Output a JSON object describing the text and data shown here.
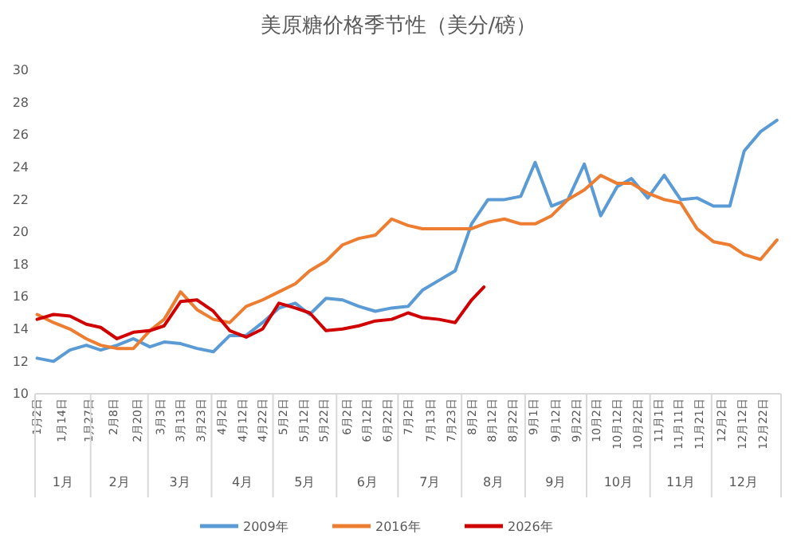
{
  "chart_data": {
    "type": "line",
    "title": "美原糖价格季节性（美分/磅）",
    "x": [
      "--01-02",
      "--01-10",
      "--01-18",
      "--01-26",
      "--02-02",
      "--02-10",
      "--02-18",
      "--02-26",
      "--03-05",
      "--03-13",
      "--03-21",
      "--03-29",
      "--04-06",
      "--04-14",
      "--04-22",
      "--04-30",
      "--05-08",
      "--05-15",
      "--05-23",
      "--05-31",
      "--06-08",
      "--06-16",
      "--06-24",
      "--07-02",
      "--07-09",
      "--07-17",
      "--07-25",
      "--08-02",
      "--08-10",
      "--08-18",
      "--08-26",
      "--09-02",
      "--09-10",
      "--09-18",
      "--09-26",
      "--10-04",
      "--10-12",
      "--10-19",
      "--10-27",
      "--11-04",
      "--11-12",
      "--11-20",
      "--11-28",
      "--12-06",
      "--12-13",
      "--12-21",
      "--12-29"
    ],
    "series": [
      {
        "name": "2009年",
        "color": "#5b9bd5",
        "values": [
          12.2,
          12.0,
          12.7,
          13.0,
          12.7,
          13.0,
          13.4,
          12.9,
          13.2,
          13.1,
          12.8,
          12.6,
          13.6,
          13.6,
          14.4,
          15.3,
          15.6,
          14.9,
          15.9,
          15.8,
          15.4,
          15.1,
          15.3,
          15.4,
          16.4,
          17.0,
          17.6,
          20.5,
          22.0,
          22.0,
          22.2,
          24.3,
          21.6,
          22.0,
          24.2,
          21.0,
          22.8,
          23.3,
          22.1,
          23.5,
          22.0,
          22.1,
          21.6,
          21.6,
          25.0,
          26.2,
          26.9
        ]
      },
      {
        "name": "2016年",
        "color": "#ed7d31",
        "values": [
          14.9,
          14.4,
          14.0,
          13.4,
          13.0,
          12.8,
          12.8,
          13.9,
          14.6,
          16.3,
          15.2,
          14.6,
          14.4,
          15.4,
          15.8,
          16.3,
          16.8,
          17.6,
          18.2,
          19.2,
          19.6,
          19.8,
          20.8,
          20.4,
          20.2,
          20.2,
          20.2,
          20.2,
          20.6,
          20.8,
          20.5,
          20.5,
          21.0,
          22.0,
          22.6,
          23.5,
          23.0,
          23.0,
          22.4,
          22.0,
          21.8,
          20.2,
          19.4,
          19.2,
          18.6,
          18.3,
          19.5
        ]
      },
      {
        "name": "2026年",
        "color": "#d00000",
        "x": [
          "--01-02",
          "--01-10",
          "--01-18",
          "--01-26",
          "--02-02",
          "--02-10",
          "--02-18",
          "--02-26",
          "--03-05",
          "--03-13",
          "--03-21",
          "--03-29",
          "--04-06",
          "--04-14",
          "--04-22",
          "--04-30",
          "--05-08",
          "--05-15",
          "--05-23",
          "--05-31",
          "--06-08",
          "--06-16",
          "--06-24",
          "--07-02",
          "--07-09",
          "--07-17",
          "--07-25",
          "--08-02",
          "--08-08"
        ],
        "values": [
          14.6,
          14.9,
          14.8,
          14.3,
          14.1,
          13.4,
          13.8,
          13.9,
          14.2,
          15.7,
          15.8,
          15.1,
          13.9,
          13.5,
          14.0,
          15.6,
          15.3,
          15.0,
          13.9,
          14.0,
          14.2,
          14.5,
          14.6,
          15.0,
          14.7,
          14.6,
          14.4,
          15.8,
          16.6
        ]
      }
    ],
    "xlim": [
      "--01-01",
      "--12-31"
    ],
    "xticks": [
      {
        "value": "--01-02",
        "label": "1月2日"
      },
      {
        "value": "--01-14",
        "label": "1月14日"
      },
      {
        "value": "--01-27",
        "label": "1月27日"
      },
      {
        "value": "--02-08",
        "label": "2月8日"
      },
      {
        "value": "--02-20",
        "label": "2月20日"
      },
      {
        "value": "--03-03",
        "label": "3月3日"
      },
      {
        "value": "--03-13",
        "label": "3月13日"
      },
      {
        "value": "--03-23",
        "label": "3月23日"
      },
      {
        "value": "--04-02",
        "label": "4月2日"
      },
      {
        "value": "--04-12",
        "label": "4月12日"
      },
      {
        "value": "--04-22",
        "label": "4月22日"
      },
      {
        "value": "--05-02",
        "label": "5月2日"
      },
      {
        "value": "--05-12",
        "label": "5月12日"
      },
      {
        "value": "--05-22",
        "label": "5月22日"
      },
      {
        "value": "--06-02",
        "label": "6月2日"
      },
      {
        "value": "--06-12",
        "label": "6月12日"
      },
      {
        "value": "--06-22",
        "label": "6月22日"
      },
      {
        "value": "--07-02",
        "label": "7月2日"
      },
      {
        "value": "--07-13",
        "label": "7月13日"
      },
      {
        "value": "--07-23",
        "label": "7月23日"
      },
      {
        "value": "--08-02",
        "label": "8月2日"
      },
      {
        "value": "--08-12",
        "label": "8月12日"
      },
      {
        "value": "--08-22",
        "label": "8月22日"
      },
      {
        "value": "--09-01",
        "label": "9月1日"
      },
      {
        "value": "--09-12",
        "label": "9月12日"
      },
      {
        "value": "--09-22",
        "label": "9月22日"
      },
      {
        "value": "--10-02",
        "label": "10月2日"
      },
      {
        "value": "--10-12",
        "label": "10月12日"
      },
      {
        "value": "--10-22",
        "label": "10月22日"
      },
      {
        "value": "--11-01",
        "label": "11月1日"
      },
      {
        "value": "--11-11",
        "label": "11月11日"
      },
      {
        "value": "--11-21",
        "label": "11月21日"
      },
      {
        "value": "--12-02",
        "label": "12月2日"
      },
      {
        "value": "--12-12",
        "label": "12月12日"
      },
      {
        "value": "--12-22",
        "label": "12月22日"
      }
    ],
    "ylim": [
      10,
      30
    ],
    "yticks": [
      10,
      12,
      14,
      16,
      18,
      20,
      22,
      24,
      26,
      28,
      30
    ],
    "annotations": [
      "1月",
      "2月",
      "3月",
      "4月",
      "5月",
      "6月",
      "7月",
      "8月",
      "9月",
      "10月",
      "11月",
      "12月"
    ],
    "legend": "bottom",
    "grid": false,
    "marker": "none",
    "line_style": "solid"
  }
}
